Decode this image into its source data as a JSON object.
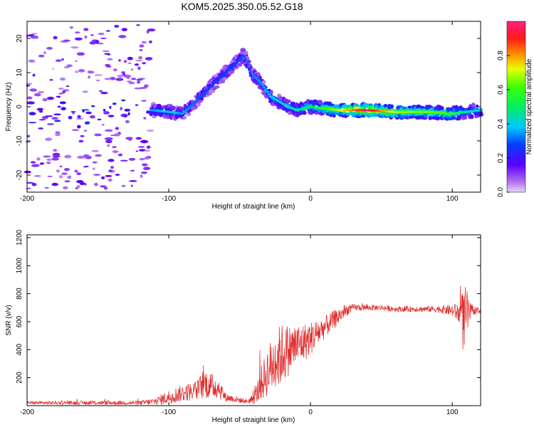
{
  "title": "KOM5.2025.350.05.52.G18",
  "chart_data": [
    {
      "type": "heatmap",
      "xlabel": "Height of straight line (km)",
      "ylabel": "Frequency (Hz)",
      "xlim": [
        -200,
        120
      ],
      "ylim": [
        -25,
        25
      ],
      "x_ticks": [
        -200,
        -100,
        0,
        100
      ],
      "y_ticks": [
        -20,
        -10,
        0,
        10,
        20
      ],
      "colorbar": {
        "label": "Normalized spectral amplitude",
        "ticks": [
          "0.0",
          "0.2",
          "0.4",
          "0.6",
          "0.8"
        ],
        "range": [
          0,
          1
        ],
        "colormap": "rainbow (violet-blue-cyan-green-yellow-red-magenta)"
      },
      "ridge": {
        "x": [
          -112,
          -100,
          -90,
          -80,
          -70,
          -60,
          -52,
          -47,
          -42,
          -35,
          -28,
          -20,
          -10,
          0,
          20,
          40,
          60,
          80,
          100,
          110,
          120
        ],
        "freq": [
          -1,
          -1.5,
          -2,
          2,
          6,
          10,
          13,
          15,
          10,
          7,
          3,
          1,
          -1,
          0,
          -1,
          -1,
          -1.5,
          -1.5,
          -2,
          -1.5,
          -1
        ],
        "amp": [
          0.25,
          0.3,
          0.25,
          0.2,
          0.18,
          0.18,
          0.18,
          0.2,
          0.22,
          0.25,
          0.28,
          0.3,
          0.35,
          0.4,
          0.6,
          0.85,
          0.6,
          0.55,
          0.5,
          0.35,
          0.3
        ]
      },
      "noise_region_x": [
        -200,
        -112
      ],
      "grid": false
    },
    {
      "type": "line",
      "xlabel": "Height of straight line (km)",
      "ylabel": "SNR (v/v)",
      "xlim": [
        -200,
        120
      ],
      "ylim": [
        0,
        1220
      ],
      "x_ticks": [
        -200,
        -100,
        0,
        100
      ],
      "y_ticks": [
        200,
        400,
        600,
        800,
        1000,
        1200
      ],
      "color": "#e03030",
      "envelope": {
        "x": [
          -200,
          -120,
          -110,
          -100,
          -90,
          -80,
          -75,
          -70,
          -65,
          -60,
          -45,
          -40,
          -35,
          -30,
          -25,
          -20,
          -15,
          -10,
          -5,
          0,
          5,
          10,
          15,
          20,
          25,
          30,
          40,
          50,
          60,
          70,
          80,
          90,
          100,
          105,
          108,
          110,
          112,
          115,
          120
        ],
        "base": [
          20,
          20,
          30,
          60,
          90,
          110,
          160,
          140,
          130,
          60,
          30,
          50,
          150,
          250,
          320,
          370,
          400,
          430,
          450,
          480,
          520,
          560,
          600,
          640,
          680,
          700,
          700,
          700,
          690,
          690,
          690,
          690,
          680,
          660,
          600,
          650,
          660,
          680,
          680
        ],
        "spread": [
          12,
          15,
          25,
          50,
          60,
          70,
          110,
          90,
          80,
          30,
          15,
          40,
          120,
          180,
          220,
          220,
          180,
          160,
          140,
          120,
          100,
          80,
          70,
          60,
          40,
          25,
          20,
          20,
          20,
          20,
          20,
          25,
          40,
          80,
          250,
          200,
          80,
          30,
          20
        ]
      },
      "grid": false
    }
  ]
}
